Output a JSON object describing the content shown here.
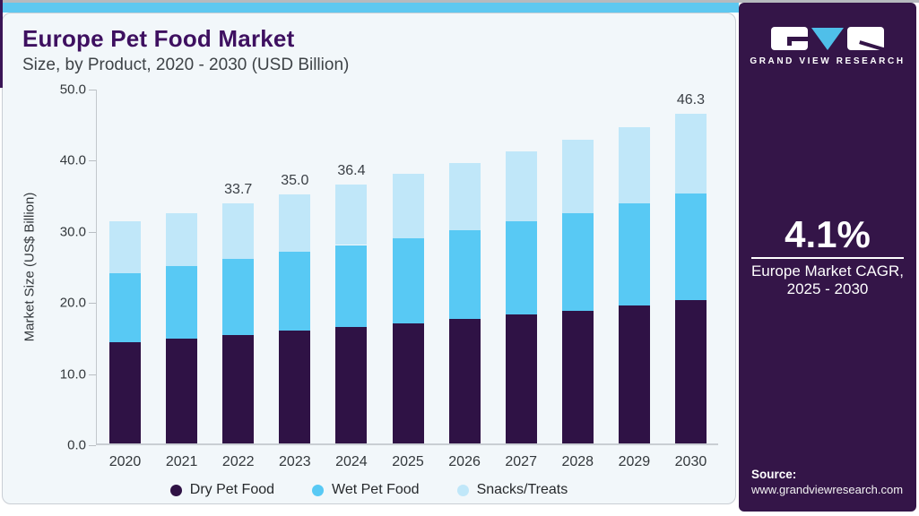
{
  "header": {
    "title": "Europe Pet Food Market",
    "subtitle": "Size, by Product, 2020 - 2030 (USD Billion)"
  },
  "sidebar": {
    "brand": "GRAND VIEW RESEARCH",
    "cagr": {
      "value": "4.1%",
      "caption_line1": "Europe Market CAGR,",
      "caption_line2": "2025 - 2030"
    },
    "source_label": "Source:",
    "source_url": "www.grandviewresearch.com"
  },
  "colors": {
    "accent_bar": "#5ec8f0",
    "sidebar_bg": "#341548",
    "panel_bg": "#f2f7fa",
    "title": "#3e1060",
    "dry": "#2f1245",
    "wet": "#58c9f4",
    "snacks": "#c0e7f9"
  },
  "chart_data": {
    "type": "bar",
    "stacked": true,
    "title": "Europe Pet Food Market Size, by Product, 2020 - 2030 (USD Billion)",
    "ylabel": "Market Size (US$ Billion)",
    "xlabel": "",
    "ylim": [
      0,
      50
    ],
    "yticks": [
      "0.0",
      "10.0",
      "20.0",
      "30.0",
      "40.0",
      "50.0"
    ],
    "grid": false,
    "legend_position": "bottom",
    "categories": [
      "2020",
      "2021",
      "2022",
      "2023",
      "2024",
      "2025",
      "2026",
      "2027",
      "2028",
      "2029",
      "2030"
    ],
    "series": [
      {
        "name": "Dry Pet Food",
        "color": "#2f1245",
        "values": [
          14.2,
          14.7,
          15.3,
          15.9,
          16.4,
          16.9,
          17.5,
          18.1,
          18.7,
          19.4,
          20.1
        ]
      },
      {
        "name": "Wet Pet Food",
        "color": "#58c9f4",
        "values": [
          9.7,
          10.2,
          10.6,
          11.0,
          11.5,
          12.0,
          12.5,
          13.1,
          13.7,
          14.3,
          15.0
        ]
      },
      {
        "name": "Snacks/Treats",
        "color": "#c0e7f9",
        "values": [
          7.3,
          7.5,
          7.8,
          8.1,
          8.5,
          9.0,
          9.4,
          9.8,
          10.3,
          10.7,
          11.2
        ]
      }
    ],
    "totals": [
      31.2,
      32.4,
      33.7,
      35.0,
      36.4,
      37.9,
      39.4,
      41.0,
      42.7,
      44.4,
      46.3
    ],
    "total_labels": {
      "2022": "33.7",
      "2023": "35.0",
      "2024": "36.4",
      "2030": "46.3"
    }
  }
}
